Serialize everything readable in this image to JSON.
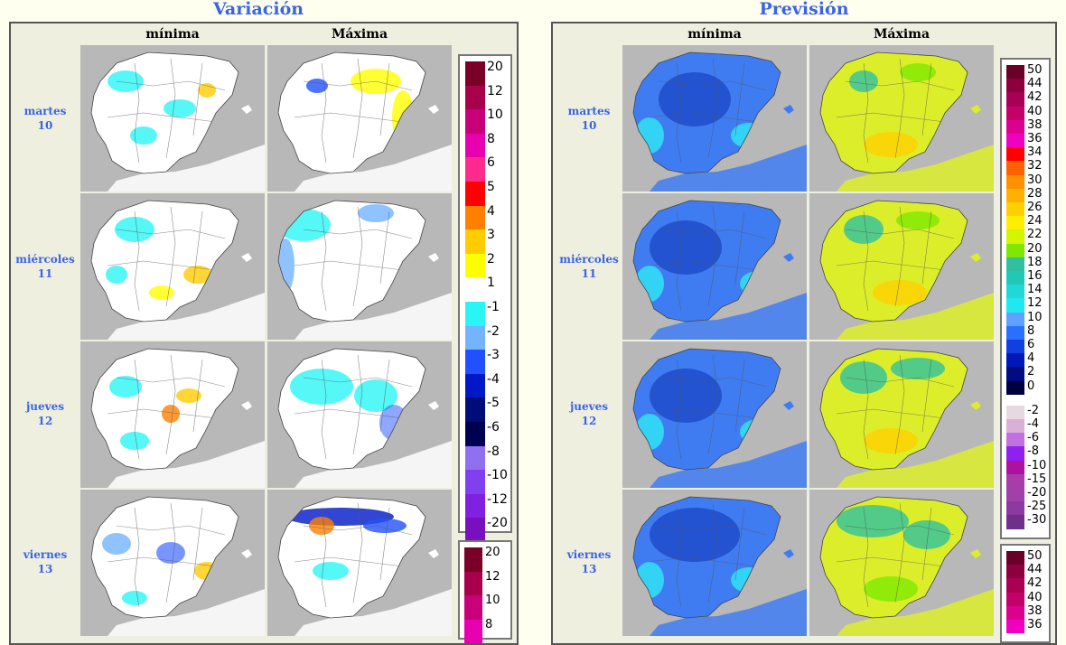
{
  "panels": [
    {
      "title": "Variación",
      "columns": [
        "mínima",
        "Máxima"
      ],
      "days": [
        {
          "name": "martes",
          "num": "10"
        },
        {
          "name": "miércoles",
          "num": "11"
        },
        {
          "name": "jueves",
          "num": "12"
        },
        {
          "name": "viernes",
          "num": "13"
        }
      ],
      "legend_main": [
        {
          "label": "20",
          "color": "#7a0027"
        },
        {
          "label": "12",
          "color": "#a8004a"
        },
        {
          "label": "10",
          "color": "#c8007a"
        },
        {
          "label": "8",
          "color": "#e800b0"
        },
        {
          "label": "6",
          "color": "#ff2a8c"
        },
        {
          "label": "5",
          "color": "#ff0000"
        },
        {
          "label": "4",
          "color": "#ff7f00"
        },
        {
          "label": "3",
          "color": "#ffcc00"
        },
        {
          "label": "2",
          "color": "#ffff00"
        },
        {
          "label": "1",
          "color": "#ffffff"
        },
        {
          "label": "-1",
          "color": "#2af5f5"
        },
        {
          "label": "-2",
          "color": "#73b4ff"
        },
        {
          "label": "-3",
          "color": "#2050ff"
        },
        {
          "label": "-4",
          "color": "#0018c8"
        },
        {
          "label": "-5",
          "color": "#000c78"
        },
        {
          "label": "-6",
          "color": "#000050"
        },
        {
          "label": "-8",
          "color": "#9070f0"
        },
        {
          "label": "-10",
          "color": "#8040f0"
        },
        {
          "label": "-12",
          "color": "#8020e0"
        },
        {
          "label": "-20",
          "color": "#7810c0"
        }
      ],
      "legend_second": [
        {
          "label": "20",
          "color": "#7a0027"
        },
        {
          "label": "12",
          "color": "#a8004a"
        },
        {
          "label": "10",
          "color": "#c8007a"
        },
        {
          "label": "8",
          "color": "#e800b0"
        }
      ]
    },
    {
      "title": "Previsión",
      "columns": [
        "mínima",
        "Máxima"
      ],
      "days": [
        {
          "name": "martes",
          "num": "10"
        },
        {
          "name": "miércoles",
          "num": "11"
        },
        {
          "name": "jueves",
          "num": "12"
        },
        {
          "name": "viernes",
          "num": "13"
        }
      ],
      "legend_main": [
        {
          "label": "50",
          "color": "#6a0028"
        },
        {
          "label": "44",
          "color": "#8c0040"
        },
        {
          "label": "42",
          "color": "#a80055"
        },
        {
          "label": "40",
          "color": "#c4006a"
        },
        {
          "label": "38",
          "color": "#dc0090"
        },
        {
          "label": "36",
          "color": "#f000c0"
        },
        {
          "label": "34",
          "color": "#ff0000"
        },
        {
          "label": "32",
          "color": "#ff6000"
        },
        {
          "label": "30",
          "color": "#ff9000"
        },
        {
          "label": "28",
          "color": "#ffb000"
        },
        {
          "label": "26",
          "color": "#ffd000"
        },
        {
          "label": "24",
          "color": "#ffee00"
        },
        {
          "label": "22",
          "color": "#d4f500"
        },
        {
          "label": "20",
          "color": "#80e800"
        },
        {
          "label": "18",
          "color": "#30c0a0"
        },
        {
          "label": "16",
          "color": "#20c8b8"
        },
        {
          "label": "14",
          "color": "#20d8d8"
        },
        {
          "label": "12",
          "color": "#20e8f0"
        },
        {
          "label": "10",
          "color": "#60a0ff"
        },
        {
          "label": "8",
          "color": "#2a70ff"
        },
        {
          "label": "6",
          "color": "#1040e0"
        },
        {
          "label": "4",
          "color": "#0018b8"
        },
        {
          "label": "2",
          "color": "#000c80"
        },
        {
          "label": "0",
          "color": "#000040"
        },
        {
          "label": "-2",
          "color": "#e8d8e0"
        },
        {
          "label": "-4",
          "color": "#d8b0d8"
        },
        {
          "label": "-6",
          "color": "#c070e0"
        },
        {
          "label": "-8",
          "color": "#9020f0"
        },
        {
          "label": "-10",
          "color": "#b010a0"
        },
        {
          "label": "-15",
          "color": "#a83ca8"
        },
        {
          "label": "-20",
          "color": "#a040a8"
        },
        {
          "label": "-25",
          "color": "#8a3aa0"
        },
        {
          "label": "-30",
          "color": "#70308a"
        }
      ],
      "legend_second": [
        {
          "label": "50",
          "color": "#6a0028"
        },
        {
          "label": "44",
          "color": "#8c0040"
        },
        {
          "label": "42",
          "color": "#a80055"
        },
        {
          "label": "40",
          "color": "#c4006a"
        },
        {
          "label": "38",
          "color": "#dc0090"
        },
        {
          "label": "36",
          "color": "#f000c0"
        }
      ]
    }
  ],
  "colors": {
    "title_blue": "#3a64e6",
    "sea_gray": "#b8b8b8",
    "var_min_fill": "#ffffff",
    "var_max_fill": "#ffffff",
    "prev_min_fill": "#3f7cf2",
    "prev_max_fill": "#dcee2a"
  }
}
